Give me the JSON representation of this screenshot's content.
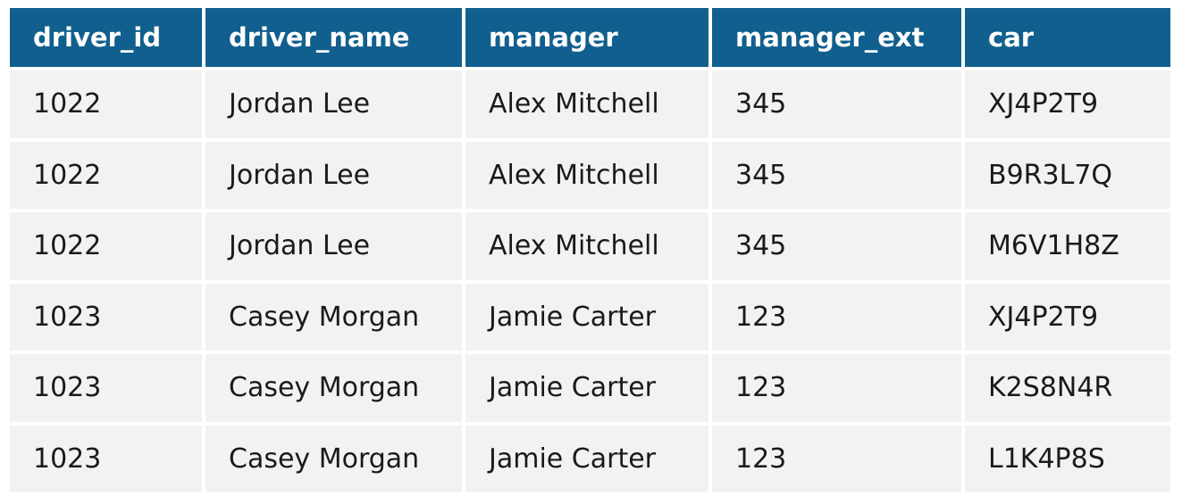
{
  "table": {
    "columns": [
      "driver_id",
      "driver_name",
      "manager",
      "manager_ext",
      "car"
    ],
    "rows": [
      [
        "1022",
        "Jordan Lee",
        "Alex Mitchell",
        "345",
        "XJ4P2T9"
      ],
      [
        "1022",
        "Jordan Lee",
        "Alex Mitchell",
        "345",
        "B9R3L7Q"
      ],
      [
        "1022",
        "Jordan Lee",
        "Alex Mitchell",
        "345",
        "M6V1H8Z"
      ],
      [
        "1023",
        "Casey Morgan",
        "Jamie Carter",
        "123",
        "XJ4P2T9"
      ],
      [
        "1023",
        "Casey Morgan",
        "Jamie Carter",
        "123",
        "K2S8N4R"
      ],
      [
        "1023",
        "Casey Morgan",
        "Jamie Carter",
        "123",
        "L1K4P8S"
      ]
    ]
  },
  "colors": {
    "header_bg": "#115f8e",
    "header_text": "#ffffff",
    "row_bg": "#f2f2f2",
    "row_text": "#1a1a1a"
  }
}
